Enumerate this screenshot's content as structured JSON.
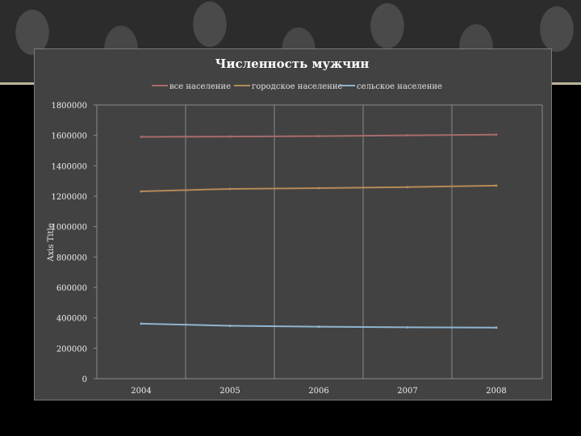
{
  "chart_data": {
    "type": "line",
    "title": "Численность мужчин",
    "ylabel": "Axis Title",
    "xlabel": "",
    "categories": [
      "2004",
      "2005",
      "2006",
      "2007",
      "2008"
    ],
    "ylim": [
      0,
      1800000
    ],
    "yticks": [
      0,
      200000,
      400000,
      600000,
      800000,
      1000000,
      1200000,
      1400000,
      1600000,
      1800000
    ],
    "grid": "vertical",
    "legend": "top",
    "series": [
      {
        "name": "все население",
        "color": "#a86b6b",
        "values": [
          1590000,
          1592000,
          1595000,
          1600000,
          1605000
        ]
      },
      {
        "name": "городское население",
        "color": "#b58a5a",
        "values": [
          1232000,
          1248000,
          1253000,
          1260000,
          1270000
        ]
      },
      {
        "name": "сельское население",
        "color": "#8fb4cf",
        "values": [
          362000,
          348000,
          342000,
          338000,
          336000
        ]
      }
    ]
  }
}
